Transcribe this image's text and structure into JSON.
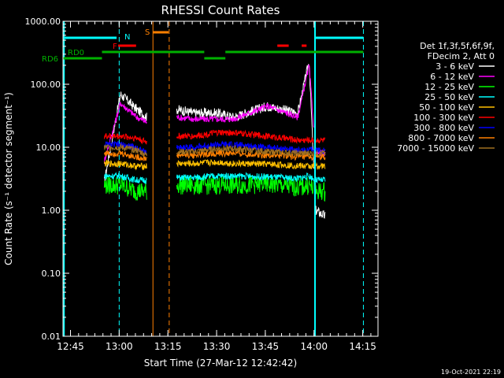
{
  "chart_data": {
    "type": "line",
    "title": "RHESSI Count Rates",
    "xlabel": "Start Time (27-Mar-12 12:42:42)",
    "ylabel": "Count Rate (s⁻¹ detector segment⁻¹)",
    "x_unit": "minutes after 12:42:42",
    "xlim": [
      0,
      97
    ],
    "ylim": [
      0.01,
      1000
    ],
    "yscale": "log",
    "x_ticks": [
      {
        "label": "12:45",
        "value": 2.3
      },
      {
        "label": "13:00",
        "value": 17.3
      },
      {
        "label": "13:15",
        "value": 32.3
      },
      {
        "label": "13:30",
        "value": 47.3
      },
      {
        "label": "13:45",
        "value": 62.3
      },
      {
        "label": "14:00",
        "value": 77.3
      },
      {
        "label": "14:15",
        "value": 92.3
      }
    ],
    "y_ticks": [
      {
        "label": "1000.00",
        "value": 1000
      },
      {
        "label": "100.00",
        "value": 100
      },
      {
        "label": "10.00",
        "value": 10
      },
      {
        "label": "1.00",
        "value": 1
      },
      {
        "label": "0.10",
        "value": 0.1
      },
      {
        "label": "0.01",
        "value": 0.01
      }
    ],
    "legend": {
      "placement": "right",
      "header": [
        "Det 1f,3f,5f,6f,9f,",
        "FDecim 2, Att 0"
      ]
    },
    "series": [
      {
        "name": "3 - 6 keV",
        "color": "#ffffff",
        "values": [
          2.8,
          70,
          40,
          30,
          40,
          35,
          35,
          30,
          45,
          35,
          230,
          1.0,
          0.8
        ]
      },
      {
        "name": "6 - 12 keV",
        "color": "#ff00ff",
        "values": [
          6,
          50,
          30,
          25,
          30,
          28,
          28,
          28,
          45,
          30,
          200,
          8,
          8
        ]
      },
      {
        "name": "12 - 25 keV",
        "color": "#00ff00",
        "values": [
          2.5,
          2.5,
          2.0,
          2.0,
          2.5,
          2.5,
          2.5,
          2.5,
          2.6,
          2.3,
          2.5,
          2,
          2
        ]
      },
      {
        "name": "25 - 50 keV",
        "color": "#00ffff",
        "values": [
          3.5,
          3.5,
          3.0,
          3.0,
          3.3,
          3.3,
          3.5,
          3.5,
          3.4,
          3.2,
          3.5,
          3,
          3
        ]
      },
      {
        "name": "50 - 100 keV",
        "color": "#ffc000",
        "values": [
          5.5,
          5.5,
          5.0,
          5.0,
          5.5,
          5.5,
          5.8,
          5.5,
          5.4,
          5.1,
          5.0,
          5,
          5
        ]
      },
      {
        "name": "100 - 300 keV",
        "color": "#ff0000",
        "values": [
          15,
          15,
          14,
          12,
          15,
          15,
          17,
          17,
          15,
          13,
          13,
          13,
          13
        ]
      },
      {
        "name": "300 - 800 keV",
        "color": "#0000ff",
        "values": [
          11,
          11,
          10,
          8,
          10,
          10,
          11,
          11,
          10,
          9,
          9,
          9,
          9
        ]
      },
      {
        "name": "800 - 7000 keV",
        "color": "#ff8000",
        "values": [
          8,
          8,
          7,
          6.5,
          7.5,
          7.5,
          8,
          8,
          7.5,
          7,
          7,
          7,
          7
        ]
      },
      {
        "name": "7000 - 15000 keV",
        "color": "#a07020",
        "values": [
          10,
          10,
          9,
          7.5,
          8.5,
          8.5,
          9.5,
          9.5,
          8.5,
          8,
          8,
          8,
          8
        ]
      }
    ],
    "x": [
      12.7,
      17.7,
      22.7,
      25.8,
      35.1,
      40.2,
      47.5,
      52.5,
      63.0,
      72.3,
      75.8,
      77.8,
      80.8
    ],
    "gaps": [
      [
        25.9,
        35.0
      ],
      [
        77.3,
        77.8
      ]
    ],
    "annotations": [
      {
        "label": "N",
        "color": "#00ffff",
        "x": 17.5
      },
      {
        "label": "F",
        "color": "#ff0000",
        "x": 16.0
      },
      {
        "label": "S",
        "color": "#ff8000",
        "x": 25.5
      },
      {
        "label": "RD0",
        "color": "#00b000",
        "x": 2.0
      },
      {
        "label": "RD6",
        "color": "#00b000",
        "x": -6.0
      }
    ],
    "footer": "19-Oct-2021 22:19"
  }
}
